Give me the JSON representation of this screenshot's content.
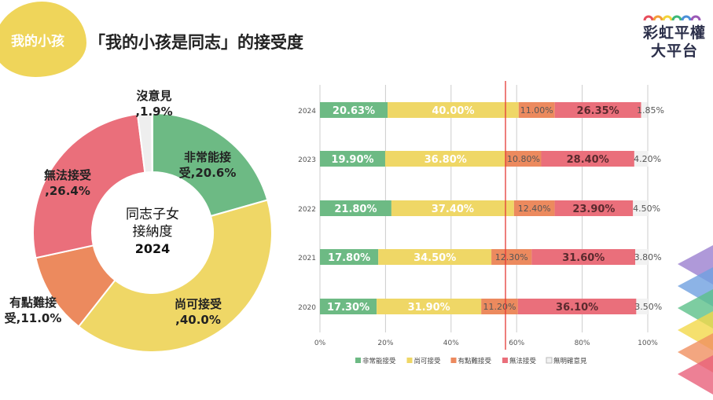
{
  "header": {
    "tag": "我的小孩",
    "title": "「我的小孩是同志」的接受度"
  },
  "logo": {
    "line1": "彩虹平權",
    "line2": "大平台",
    "arc_colors": [
      "#e74c5c",
      "#f39c38",
      "#f2d33a",
      "#3cb878",
      "#4a8fd8",
      "#9b59b6"
    ]
  },
  "chart_data": [
    {
      "type": "pie",
      "donut": true,
      "center_label": [
        "同志子女",
        "接納度",
        "2024"
      ],
      "slices": [
        {
          "name": "非常能接受",
          "value": 20.6,
          "label": [
            "非常能接",
            "受,20.6%"
          ],
          "color": "#6dba84"
        },
        {
          "name": "尚可接受",
          "value": 40.0,
          "label": [
            "尚可接受",
            ",40.0%"
          ],
          "color": "#efd766"
        },
        {
          "name": "有點難接受",
          "value": 11.0,
          "label": [
            "有點難接",
            "受,11.0%"
          ],
          "color": "#ec8a5e"
        },
        {
          "name": "無法接受",
          "value": 26.4,
          "label": [
            "無法接受",
            ",26.4%"
          ],
          "color": "#ea6f7b"
        },
        {
          "name": "沒意見",
          "value": 1.9,
          "label": [
            "沒意見",
            ",1.9%"
          ],
          "color": "#eeeeee"
        }
      ]
    },
    {
      "type": "bar",
      "stacked": true,
      "orientation": "horizontal",
      "categories": [
        "2024",
        "2023",
        "2022",
        "2021",
        "2020"
      ],
      "xlim": [
        0,
        100
      ],
      "xticks": [
        "0%",
        "20%",
        "40%",
        "60%",
        "80%",
        "100%"
      ],
      "grid": true,
      "legend": "bottom",
      "reference_line": {
        "value": 56.6,
        "color": "#e53935"
      },
      "series": [
        {
          "name": "非常能接受",
          "color": "#6dba84",
          "values": [
            20.63,
            19.9,
            21.8,
            17.8,
            17.3
          ],
          "labels": [
            "20.63%",
            "19.90%",
            "21.80%",
            "17.80%",
            "17.30%"
          ]
        },
        {
          "name": "尚可接受",
          "color": "#efd766",
          "values": [
            40.0,
            36.8,
            37.4,
            34.5,
            31.9
          ],
          "labels": [
            "40.00%",
            "36.80%",
            "37.40%",
            "34.50%",
            "31.90%"
          ]
        },
        {
          "name": "有點難接受",
          "color": "#ec8a5e",
          "values": [
            11.0,
            10.8,
            12.4,
            12.3,
            11.2
          ],
          "labels": [
            "11.00%",
            "10.80%",
            "12.40%",
            "12.30%",
            "11.20%"
          ]
        },
        {
          "name": "無法接受",
          "color": "#ea6f7b",
          "values": [
            26.35,
            28.4,
            23.9,
            31.6,
            36.1
          ],
          "labels": [
            "26.35%",
            "28.40%",
            "23.90%",
            "31.60%",
            "36.10%"
          ]
        },
        {
          "name": "無明確意見",
          "color": "#f2f2f2",
          "values": [
            1.85,
            4.2,
            4.5,
            3.8,
            3.5
          ],
          "labels": [
            "1.85%",
            "4.20%",
            "4.50%",
            "3.80%",
            "3.50%"
          ]
        }
      ]
    }
  ]
}
